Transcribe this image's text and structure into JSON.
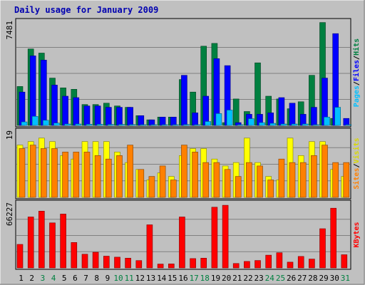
{
  "chart_data": {
    "type": "bar",
    "title": "Daily usage for January 2009",
    "days": [
      "1",
      "2",
      "3",
      "4",
      "5",
      "6",
      "7",
      "8",
      "9",
      "10",
      "11",
      "12",
      "13",
      "14",
      "15",
      "16",
      "17",
      "18",
      "19",
      "20",
      "21",
      "22",
      "23",
      "24",
      "25",
      "26",
      "27",
      "28",
      "29",
      "30",
      "31"
    ],
    "weekend_days": [
      "3",
      "4",
      "10",
      "11",
      "17",
      "18",
      "24",
      "25",
      "31"
    ],
    "panels": [
      {
        "id": "hits-files-pages",
        "ymax_label": "7481",
        "ymax": 7481,
        "series_labels": [
          "Pages",
          "Files",
          "Hits"
        ],
        "series": [
          {
            "name": "Hits",
            "color": "#008040",
            "values": [
              2800,
              5500,
              5200,
              3400,
              2700,
              2600,
              1500,
              1500,
              1600,
              1400,
              1300,
              700,
              400,
              600,
              600,
              3300,
              2400,
              5700,
              5900,
              200,
              1900,
              1000,
              4500,
              2100,
              1900,
              1200,
              1700,
              3600,
              7400,
              500,
              0
            ]
          },
          {
            "name": "Files",
            "color": "#0000ff",
            "values": [
              2400,
              5000,
              4700,
              2900,
              2100,
              2000,
              1400,
              1400,
              1300,
              1300,
              1300,
              700,
              400,
              600,
              600,
              3600,
              900,
              2100,
              4800,
              4300,
              200,
              800,
              800,
              900,
              2000,
              1600,
              800,
              1300,
              3400,
              6600,
              500
            ]
          },
          {
            "name": "Pages",
            "color": "#00c0ff",
            "values": [
              250,
              650,
              370,
              170,
              100,
              100,
              80,
              80,
              70,
              70,
              60,
              50,
              40,
              50,
              50,
              60,
              40,
              280,
              850,
              1100,
              50,
              480,
              200,
              150,
              100,
              100,
              100,
              50,
              600,
              1300,
              50
            ]
          }
        ]
      },
      {
        "id": "visits-sites",
        "ymax_label": "19",
        "ymax": 19,
        "series_labels": [
          "Sites",
          "Visits"
        ],
        "series": [
          {
            "name": "Visits",
            "color": "#ffff00",
            "values": [
              15,
              16,
              17,
              16,
              12,
              11,
              16,
              16,
              16,
              13,
              10,
              8,
              5,
              7,
              6,
              12,
              14,
              14,
              11,
              9,
              10,
              17,
              10,
              6,
              5,
              17,
              12,
              16,
              16,
              8,
              6
            ]
          },
          {
            "name": "Sites",
            "color": "#ff8000",
            "values": [
              14,
              15,
              14,
              14,
              13,
              13,
              13,
              12,
              11,
              12,
              15,
              8,
              6,
              9,
              5,
              15,
              13,
              10,
              10,
              8,
              6,
              10,
              9,
              5,
              11,
              10,
              10,
              12,
              15,
              10,
              10
            ]
          }
        ]
      },
      {
        "id": "kbytes",
        "ymax_label": "66227",
        "ymax": 66227,
        "series_labels": [
          "KBytes"
        ],
        "series": [
          {
            "name": "KBytes",
            "color": "#ff0000",
            "values": [
              24000,
              52000,
              58000,
              46000,
              55000,
              26000,
              14000,
              16000,
              12000,
              11000,
              10000,
              7500,
              44000,
              3900,
              4100,
              52000,
              9500,
              10000,
              62000,
              64000,
              4500,
              6600,
              7600,
              13000,
              15500,
              5900,
              11700,
              9000,
              40000,
              61000,
              13500
            ]
          }
        ]
      }
    ]
  }
}
